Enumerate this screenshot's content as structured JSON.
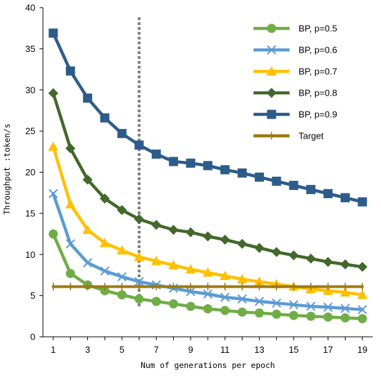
{
  "chart_data": {
    "type": "line",
    "title": "",
    "xlabel": "Num of generations per epoch",
    "ylabel": "Throughput :token/s",
    "xlim": [
      0.4,
      19.6
    ],
    "ylim": [
      0,
      40
    ],
    "x_ticks": [
      1,
      3,
      5,
      7,
      9,
      11,
      13,
      15,
      17,
      19
    ],
    "y_ticks": [
      0,
      5,
      10,
      15,
      20,
      25,
      30,
      35,
      40
    ],
    "grid": false,
    "legend_position": "top-right",
    "vertical_reference_line": {
      "x": 6,
      "style": "dotted",
      "color": "#808080"
    },
    "x": [
      1,
      2,
      3,
      4,
      5,
      6,
      7,
      8,
      9,
      10,
      11,
      12,
      13,
      14,
      15,
      16,
      17,
      18,
      19
    ],
    "series": [
      {
        "name": "BP, p=0.5",
        "color": "#70AD47",
        "marker": "circle",
        "values": [
          12.5,
          7.7,
          6.3,
          5.6,
          5.1,
          4.6,
          4.3,
          4.0,
          3.7,
          3.4,
          3.2,
          3.0,
          2.9,
          2.75,
          2.6,
          2.5,
          2.4,
          2.3,
          2.2
        ]
      },
      {
        "name": "BP, p=0.6",
        "color": "#5B9BD5",
        "marker": "x",
        "values": [
          17.4,
          11.3,
          9.0,
          8.0,
          7.3,
          6.7,
          6.3,
          5.9,
          5.5,
          5.2,
          4.8,
          4.6,
          4.3,
          4.1,
          3.9,
          3.7,
          3.6,
          3.45,
          3.3
        ]
      },
      {
        "name": "BP, p=0.7",
        "color": "#FFC000",
        "marker": "triangle",
        "values": [
          23.1,
          16.1,
          13.0,
          11.4,
          10.5,
          9.7,
          9.2,
          8.7,
          8.2,
          7.8,
          7.4,
          7.0,
          6.7,
          6.4,
          6.1,
          5.8,
          5.6,
          5.4,
          5.1
        ]
      },
      {
        "name": "BP, p=0.8",
        "color": "#43682B",
        "marker": "diamond",
        "values": [
          29.6,
          22.9,
          19.1,
          16.8,
          15.4,
          14.3,
          13.6,
          13.0,
          12.7,
          12.2,
          11.8,
          11.3,
          10.8,
          10.3,
          9.9,
          9.5,
          9.1,
          8.8,
          8.5
        ]
      },
      {
        "name": "BP, p=0.9",
        "color": "#2E5C8A",
        "marker": "square",
        "values": [
          36.9,
          32.3,
          29.0,
          26.6,
          24.7,
          23.3,
          22.2,
          21.3,
          21.1,
          20.8,
          20.3,
          19.9,
          19.4,
          18.9,
          18.4,
          17.9,
          17.4,
          16.9,
          16.4
        ]
      },
      {
        "name": "Target",
        "color": "#9C7A14",
        "marker": "plus",
        "values": [
          6.1,
          6.1,
          6.1,
          6.1,
          6.1,
          6.1,
          6.1,
          6.1,
          6.1,
          6.1,
          6.1,
          6.1,
          6.1,
          6.1,
          6.1,
          6.1,
          6.1,
          6.1,
          6.1
        ]
      }
    ]
  }
}
